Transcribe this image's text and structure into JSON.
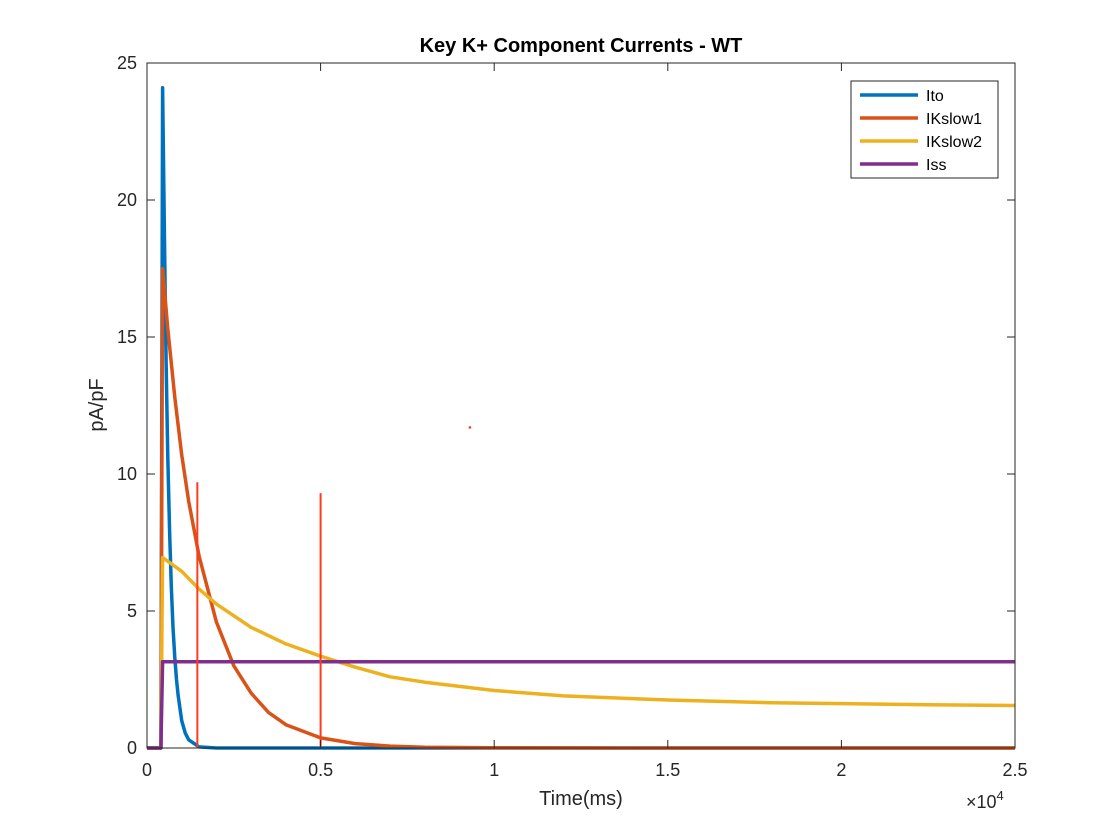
{
  "chart_data": {
    "type": "line",
    "title": "Key K+ Component Currents - WT",
    "xlabel": "Time(ms)",
    "ylabel": "pA/pF",
    "x_exponent_label": "×10",
    "x_exponent_power": "4",
    "xlim": [
      0,
      25000
    ],
    "ylim": [
      0,
      25
    ],
    "x_ticks": [
      0,
      5000,
      10000,
      15000,
      20000,
      25000
    ],
    "x_tick_labels": [
      "0",
      "0.5",
      "1",
      "1.5",
      "2",
      "2.5"
    ],
    "y_ticks": [
      0,
      5,
      10,
      15,
      20,
      25
    ],
    "y_tick_labels": [
      "0",
      "5",
      "10",
      "15",
      "20",
      "25"
    ],
    "grid": false,
    "legend_position": "top-right",
    "series": [
      {
        "name": "Ito",
        "color": "#0072BD",
        "x": [
          0,
          400,
          450,
          500,
          550,
          600,
          650,
          700,
          750,
          800,
          850,
          900,
          1000,
          1100,
          1200,
          1500,
          2000,
          5000,
          10000,
          25000
        ],
        "y": [
          0,
          0,
          24.1,
          18.8,
          14.1,
          10.6,
          7.9,
          5.9,
          4.4,
          3.3,
          2.5,
          1.9,
          1.0,
          0.55,
          0.3,
          0.04,
          0,
          0,
          0,
          0
        ]
      },
      {
        "name": "IKslow1",
        "color": "#D95319",
        "x": [
          0,
          400,
          450,
          600,
          800,
          1000,
          1200,
          1500,
          2000,
          2500,
          3000,
          3500,
          4000,
          5000,
          6000,
          7000,
          8000,
          10000,
          15000,
          25000
        ],
        "y": [
          0,
          0,
          17.5,
          15.3,
          12.8,
          10.7,
          9.0,
          7.0,
          4.6,
          3.0,
          2.0,
          1.3,
          0.85,
          0.37,
          0.16,
          0.07,
          0.03,
          0.01,
          0,
          0
        ]
      },
      {
        "name": "IKslow2",
        "color": "#EDB120",
        "x": [
          0,
          400,
          450,
          1000,
          1500,
          2000,
          3000,
          4000,
          5000,
          6000,
          7000,
          8000,
          10000,
          12000,
          15000,
          18000,
          20000,
          22500,
          25000
        ],
        "y": [
          0,
          0,
          6.95,
          6.45,
          5.8,
          5.25,
          4.4,
          3.8,
          3.35,
          2.95,
          2.6,
          2.4,
          2.1,
          1.9,
          1.75,
          1.65,
          1.62,
          1.58,
          1.55
        ]
      },
      {
        "name": "Iss",
        "color": "#7E2F8E",
        "x": [
          0,
          400,
          450,
          25000
        ],
        "y": [
          0,
          0,
          3.15,
          3.15
        ]
      }
    ],
    "annotations": [
      {
        "type": "vertical-line",
        "color": "#FF3B1F",
        "x": 1450,
        "y": [
          0,
          9.7
        ]
      },
      {
        "type": "vertical-line",
        "color": "#FF3B1F",
        "x": 5000,
        "y": [
          0,
          9.3
        ]
      },
      {
        "type": "point",
        "color": "#FF3B1F",
        "x": 9300,
        "y": 11.7
      }
    ]
  }
}
